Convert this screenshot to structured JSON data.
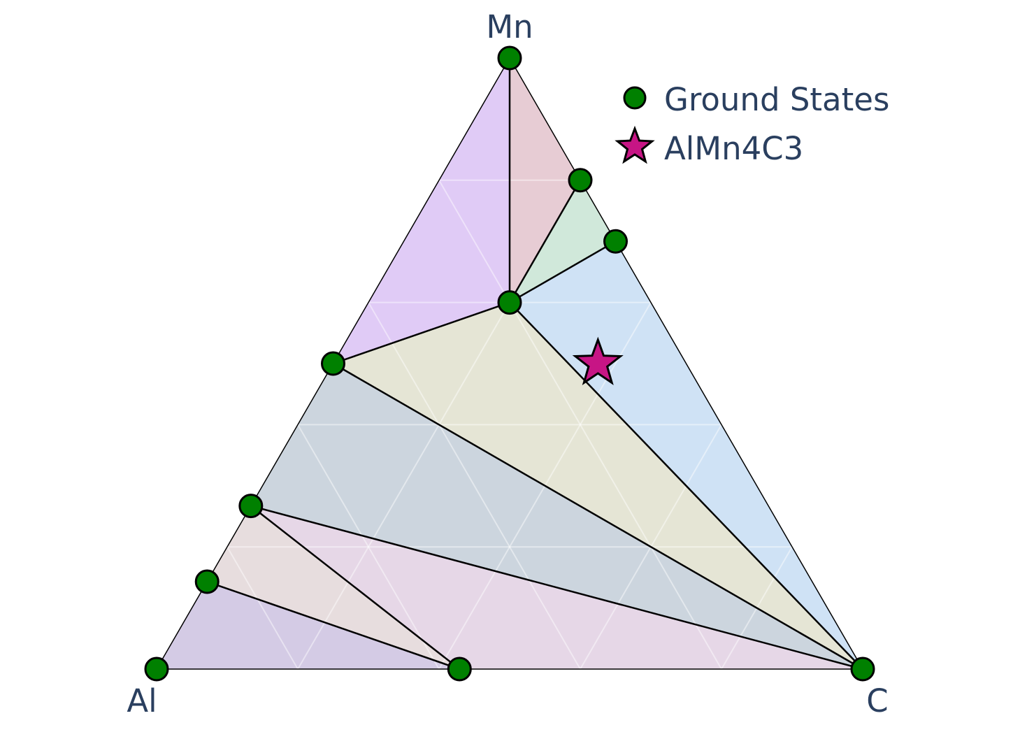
{
  "chart_data": {
    "type": "ternary",
    "axes": {
      "top": "Mn",
      "left": "Al",
      "right": "C"
    },
    "grid": true,
    "grid_fractions": [
      0.2,
      0.4,
      0.6,
      0.8
    ],
    "legend_position": "top-right",
    "legend": [
      {
        "key": "ground",
        "label": "Ground States",
        "marker": "circle",
        "color": "#008000"
      },
      {
        "key": "target",
        "label": "AlMn4C3",
        "marker": "star",
        "color": "#c71585"
      }
    ],
    "ground_states": [
      {
        "id": "Mn",
        "C": 0.0,
        "Mn": 1.0
      },
      {
        "id": "p_mnc_a",
        "C": 0.2,
        "Mn": 0.8
      },
      {
        "id": "p_mnc_b",
        "C": 0.3,
        "Mn": 0.7
      },
      {
        "id": "p_center",
        "C": 0.2,
        "Mn": 0.6
      },
      {
        "id": "p_left_a",
        "C": 0.0,
        "Mn": 0.5
      },
      {
        "id": "p_left_b",
        "C": 0.0,
        "Mn": 0.267
      },
      {
        "id": "p_left_c",
        "C": 0.0,
        "Mn": 0.143
      },
      {
        "id": "Al",
        "C": 0.0,
        "Mn": 0.0
      },
      {
        "id": "p_bottom",
        "C": 0.429,
        "Mn": 0.0
      },
      {
        "id": "C",
        "C": 1.0,
        "Mn": 0.0
      }
    ],
    "target": {
      "label": "AlMn4C3",
      "C": 0.375,
      "Mn": 0.5
    },
    "facets": [
      {
        "vertices": [
          "Mn",
          "p_left_a",
          "p_center"
        ],
        "color": "#c7a0ee"
      },
      {
        "vertices": [
          "Mn",
          "p_center",
          "p_mnc_a"
        ],
        "color": "#d4a2b0"
      },
      {
        "vertices": [
          "p_mnc_a",
          "p_center",
          "p_mnc_b"
        ],
        "color": "#a9d6bc"
      },
      {
        "vertices": [
          "p_mnc_b",
          "p_center",
          "C"
        ],
        "color": "#a8cbec"
      },
      {
        "vertices": [
          "p_center",
          "p_left_a",
          "C"
        ],
        "color": "#cfcfb2"
      },
      {
        "vertices": [
          "p_left_a",
          "p_left_b",
          "C"
        ],
        "color": "#a3b3c2"
      },
      {
        "vertices": [
          "p_left_b",
          "p_bottom",
          "C"
        ],
        "color": "#d1b6d4"
      },
      {
        "vertices": [
          "p_left_b",
          "p_left_c",
          "p_bottom"
        ],
        "color": "#d3c1c3"
      },
      {
        "vertices": [
          "p_left_c",
          "Al",
          "p_bottom"
        ],
        "color": "#b1a0cf"
      }
    ],
    "tie_lines": [
      [
        "Mn",
        "p_center"
      ],
      [
        "p_center",
        "p_mnc_a"
      ],
      [
        "p_center",
        "p_mnc_b"
      ],
      [
        "p_center",
        "p_left_a"
      ],
      [
        "p_center",
        "C"
      ],
      [
        "p_left_a",
        "C"
      ],
      [
        "p_left_b",
        "C"
      ],
      [
        "p_left_b",
        "p_bottom"
      ],
      [
        "p_left_c",
        "p_bottom"
      ]
    ]
  }
}
